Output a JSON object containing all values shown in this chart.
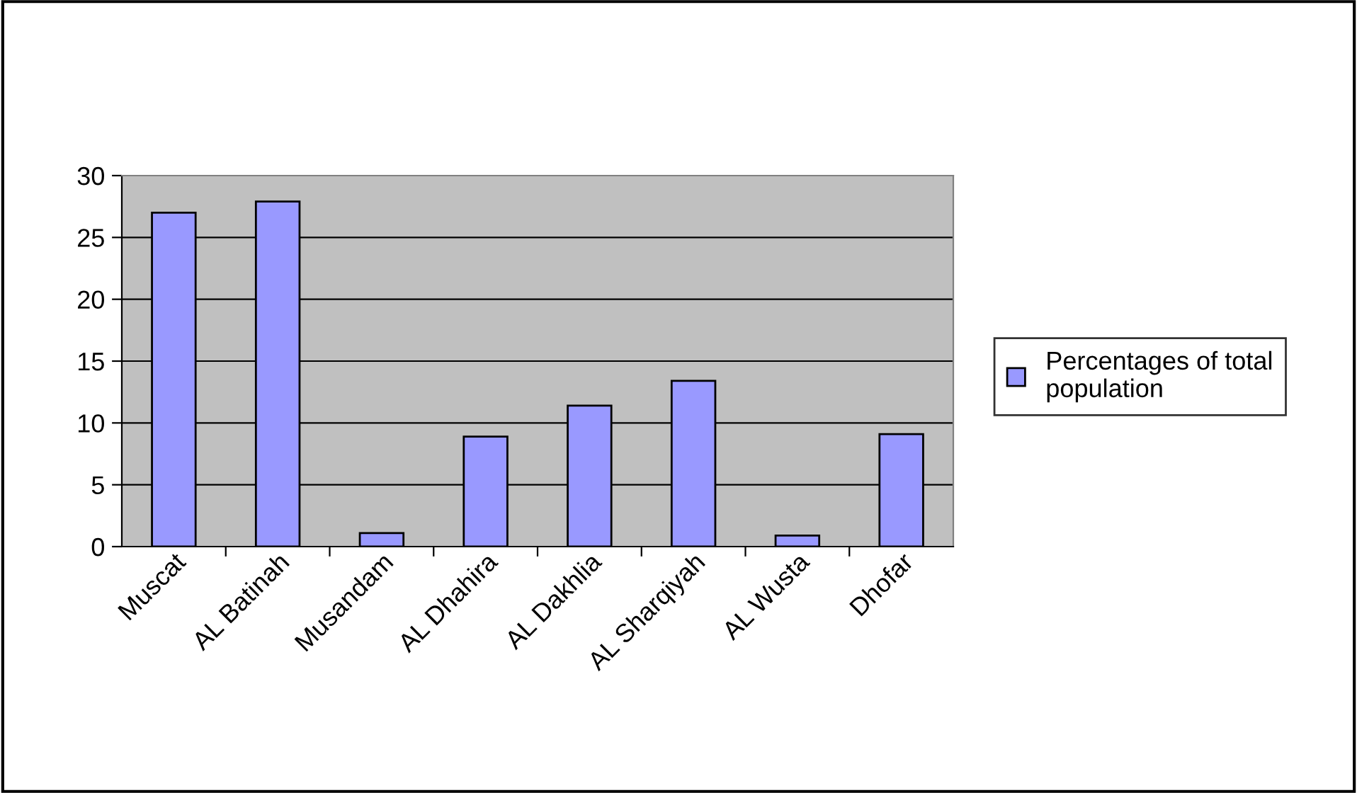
{
  "chart_data": {
    "type": "bar",
    "categories": [
      "Muscat",
      "AL Batinah",
      "Musandam",
      "AL Dhahira",
      "AL Dakhlia",
      "AL Sharqiyah",
      "AL Wusta",
      "Dhofar"
    ],
    "series": [
      {
        "name": "Percentages of total population",
        "color": "#9999ff",
        "values": [
          27.0,
          27.9,
          1.1,
          8.9,
          11.4,
          13.4,
          0.9,
          9.1
        ]
      }
    ],
    "ylim": [
      0,
      30
    ],
    "yticks": [
      0,
      5,
      10,
      15,
      20,
      25,
      30
    ],
    "grid": "y",
    "legend": "right"
  }
}
